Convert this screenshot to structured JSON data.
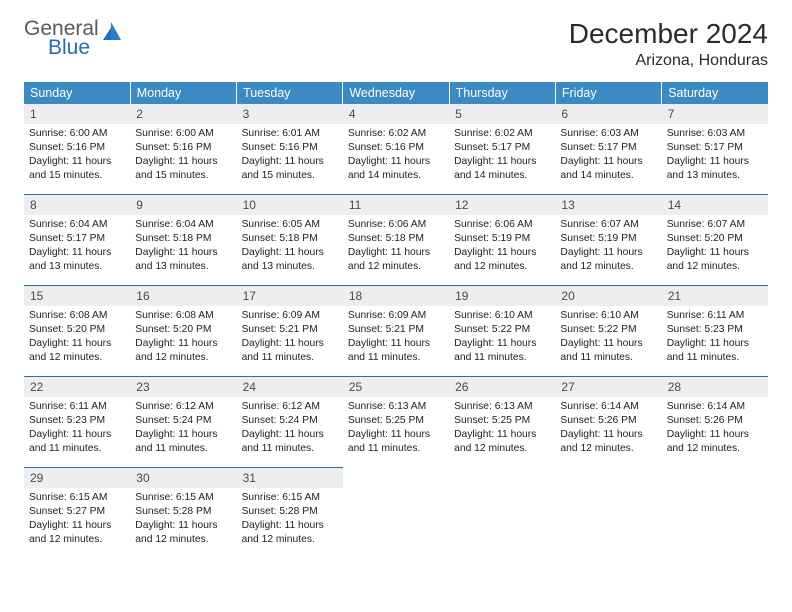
{
  "logo": {
    "line1": "General",
    "line2": "Blue"
  },
  "title": "December 2024",
  "location": "Arizona, Honduras",
  "header_bg": "#3b8ac4",
  "rule_color": "#2f6fa0",
  "daynum_bg": "#eceeef",
  "weekdays": [
    "Sunday",
    "Monday",
    "Tuesday",
    "Wednesday",
    "Thursday",
    "Friday",
    "Saturday"
  ],
  "weeks": [
    [
      {
        "n": "1",
        "sr": "6:00 AM",
        "ss": "5:16 PM",
        "dl": "11 hours and 15 minutes."
      },
      {
        "n": "2",
        "sr": "6:00 AM",
        "ss": "5:16 PM",
        "dl": "11 hours and 15 minutes."
      },
      {
        "n": "3",
        "sr": "6:01 AM",
        "ss": "5:16 PM",
        "dl": "11 hours and 15 minutes."
      },
      {
        "n": "4",
        "sr": "6:02 AM",
        "ss": "5:16 PM",
        "dl": "11 hours and 14 minutes."
      },
      {
        "n": "5",
        "sr": "6:02 AM",
        "ss": "5:17 PM",
        "dl": "11 hours and 14 minutes."
      },
      {
        "n": "6",
        "sr": "6:03 AM",
        "ss": "5:17 PM",
        "dl": "11 hours and 14 minutes."
      },
      {
        "n": "7",
        "sr": "6:03 AM",
        "ss": "5:17 PM",
        "dl": "11 hours and 13 minutes."
      }
    ],
    [
      {
        "n": "8",
        "sr": "6:04 AM",
        "ss": "5:17 PM",
        "dl": "11 hours and 13 minutes."
      },
      {
        "n": "9",
        "sr": "6:04 AM",
        "ss": "5:18 PM",
        "dl": "11 hours and 13 minutes."
      },
      {
        "n": "10",
        "sr": "6:05 AM",
        "ss": "5:18 PM",
        "dl": "11 hours and 13 minutes."
      },
      {
        "n": "11",
        "sr": "6:06 AM",
        "ss": "5:18 PM",
        "dl": "11 hours and 12 minutes."
      },
      {
        "n": "12",
        "sr": "6:06 AM",
        "ss": "5:19 PM",
        "dl": "11 hours and 12 minutes."
      },
      {
        "n": "13",
        "sr": "6:07 AM",
        "ss": "5:19 PM",
        "dl": "11 hours and 12 minutes."
      },
      {
        "n": "14",
        "sr": "6:07 AM",
        "ss": "5:20 PM",
        "dl": "11 hours and 12 minutes."
      }
    ],
    [
      {
        "n": "15",
        "sr": "6:08 AM",
        "ss": "5:20 PM",
        "dl": "11 hours and 12 minutes."
      },
      {
        "n": "16",
        "sr": "6:08 AM",
        "ss": "5:20 PM",
        "dl": "11 hours and 12 minutes."
      },
      {
        "n": "17",
        "sr": "6:09 AM",
        "ss": "5:21 PM",
        "dl": "11 hours and 11 minutes."
      },
      {
        "n": "18",
        "sr": "6:09 AM",
        "ss": "5:21 PM",
        "dl": "11 hours and 11 minutes."
      },
      {
        "n": "19",
        "sr": "6:10 AM",
        "ss": "5:22 PM",
        "dl": "11 hours and 11 minutes."
      },
      {
        "n": "20",
        "sr": "6:10 AM",
        "ss": "5:22 PM",
        "dl": "11 hours and 11 minutes."
      },
      {
        "n": "21",
        "sr": "6:11 AM",
        "ss": "5:23 PM",
        "dl": "11 hours and 11 minutes."
      }
    ],
    [
      {
        "n": "22",
        "sr": "6:11 AM",
        "ss": "5:23 PM",
        "dl": "11 hours and 11 minutes."
      },
      {
        "n": "23",
        "sr": "6:12 AM",
        "ss": "5:24 PM",
        "dl": "11 hours and 11 minutes."
      },
      {
        "n": "24",
        "sr": "6:12 AM",
        "ss": "5:24 PM",
        "dl": "11 hours and 11 minutes."
      },
      {
        "n": "25",
        "sr": "6:13 AM",
        "ss": "5:25 PM",
        "dl": "11 hours and 11 minutes."
      },
      {
        "n": "26",
        "sr": "6:13 AM",
        "ss": "5:25 PM",
        "dl": "11 hours and 12 minutes."
      },
      {
        "n": "27",
        "sr": "6:14 AM",
        "ss": "5:26 PM",
        "dl": "11 hours and 12 minutes."
      },
      {
        "n": "28",
        "sr": "6:14 AM",
        "ss": "5:26 PM",
        "dl": "11 hours and 12 minutes."
      }
    ],
    [
      {
        "n": "29",
        "sr": "6:15 AM",
        "ss": "5:27 PM",
        "dl": "11 hours and 12 minutes."
      },
      {
        "n": "30",
        "sr": "6:15 AM",
        "ss": "5:28 PM",
        "dl": "11 hours and 12 minutes."
      },
      {
        "n": "31",
        "sr": "6:15 AM",
        "ss": "5:28 PM",
        "dl": "11 hours and 12 minutes."
      },
      null,
      null,
      null,
      null
    ]
  ],
  "labels": {
    "sunrise": "Sunrise:",
    "sunset": "Sunset:",
    "daylight": "Daylight:"
  }
}
